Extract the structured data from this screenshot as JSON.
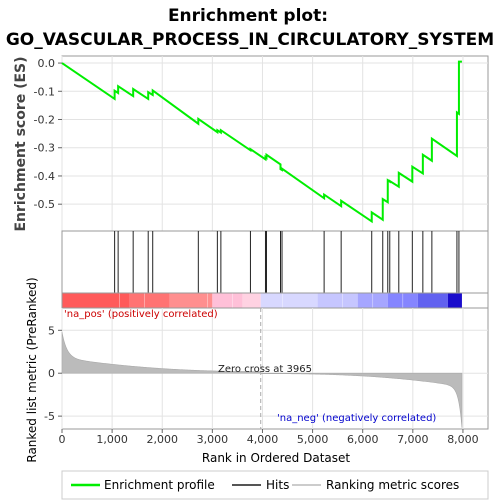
{
  "chart_data": {
    "type": "line",
    "title_line1": "Enrichment plot:",
    "title_line2": "GO_VASCULAR_PROCESS_IN_CIRCULATORY_SYSTEM",
    "es_panel": {
      "ylabel": "Enrichment score (ES)",
      "ylim": [
        -0.595,
        0.025
      ],
      "yticks": [
        "0.0",
        "-0.1",
        "-0.2",
        "-0.3",
        "-0.4",
        "-0.5"
      ],
      "ytick_values": [
        0.0,
        -0.1,
        -0.2,
        -0.3,
        -0.4,
        -0.5
      ],
      "color": "#00ee00"
    },
    "hits": [
      1050,
      1120,
      1420,
      1720,
      1810,
      2720,
      3100,
      3170,
      3760,
      4060,
      4080,
      4360,
      4390,
      5230,
      5570,
      6180,
      6400,
      6500,
      6540,
      6720,
      6990,
      7200,
      7380,
      7880,
      7920
    ],
    "es_curve": {
      "x": [
        0,
        1050,
        1050,
        1120,
        1120,
        1420,
        1420,
        1720,
        1720,
        1810,
        1810,
        2720,
        2720,
        3100,
        3100,
        3170,
        3170,
        3760,
        3760,
        4060,
        4060,
        4080,
        4080,
        4360,
        4360,
        4390,
        4390,
        5230,
        5230,
        5570,
        5570,
        6180,
        6180,
        6400,
        6400,
        6500,
        6500,
        6540,
        6540,
        6720,
        6720,
        6990,
        6990,
        7200,
        7200,
        7380,
        7380,
        7880,
        7880,
        7920,
        7920,
        7980
      ],
      "y": [
        0.0,
        -0.127,
        -0.098,
        -0.106,
        -0.082,
        -0.117,
        -0.092,
        -0.127,
        -0.103,
        -0.113,
        -0.097,
        -0.215,
        -0.198,
        -0.245,
        -0.238,
        -0.246,
        -0.238,
        -0.309,
        -0.305,
        -0.341,
        -0.333,
        -0.336,
        -0.325,
        -0.359,
        -0.376,
        -0.379,
        -0.374,
        -0.479,
        -0.466,
        -0.507,
        -0.488,
        -0.561,
        -0.529,
        -0.555,
        -0.482,
        -0.493,
        -0.415,
        -0.42,
        -0.418,
        -0.438,
        -0.389,
        -0.42,
        -0.367,
        -0.391,
        -0.325,
        -0.346,
        -0.268,
        -0.329,
        -0.175,
        -0.18,
        0.005,
        0.005
      ]
    },
    "heatmap_label_pos": "'na_pos' (positively correlated)",
    "heatmap_label_neg": "'na_neg' (negatively correlated)",
    "rank_panel": {
      "ylabel": "Ranked list metric (PreRanked)",
      "ylim": [
        -6.5,
        7.6
      ],
      "yticks": [
        "5",
        "0",
        "-5"
      ],
      "ytick_values": [
        5,
        0,
        -5
      ],
      "zero_cross_label": "Zero cross at 3965",
      "zero_cross": 3965
    },
    "xlabel": "Rank in Ordered Dataset",
    "xlim": [
      0,
      8500
    ],
    "xticks": [
      "0",
      "1,000",
      "2,000",
      "3,000",
      "4,000",
      "5,000",
      "6,000",
      "7,000",
      "8,000"
    ],
    "xtick_values": [
      0,
      1000,
      2000,
      3000,
      4000,
      5000,
      6000,
      7000,
      8000
    ],
    "n_genes": 7980,
    "legend": [
      {
        "label": "Enrichment profile",
        "color": "#00ee00"
      },
      {
        "label": "Hits",
        "color": "#555555"
      },
      {
        "label": "Ranking metric scores",
        "color": "#cccccc"
      }
    ]
  }
}
